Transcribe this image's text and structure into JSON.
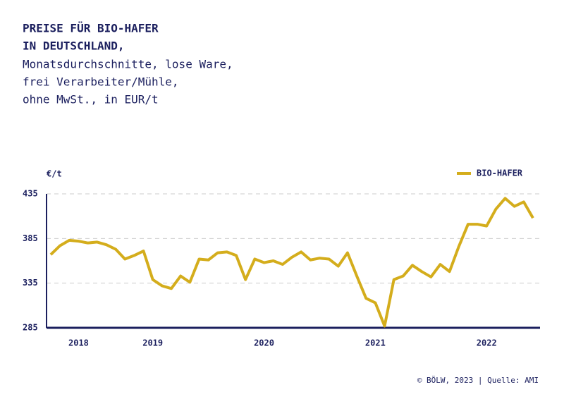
{
  "chart_data": {
    "type": "line",
    "title": [
      "PREISE FÜR BIO-HAFER",
      "IN DEUTSCHLAND,"
    ],
    "subtitle": [
      "Monatsdurchschnitte, lose Ware,",
      "frei Verarbeiter/Mühle,",
      "ohne MwSt., in EUR/t"
    ],
    "y_label": "€/t",
    "source": "© BÖLW, 2023 | Quelle: AMI",
    "categories": [
      null,
      null,
      null,
      "2018",
      null,
      null,
      null,
      null,
      null,
      null,
      null,
      "2019",
      null,
      null,
      null,
      null,
      null,
      null,
      null,
      null,
      null,
      null,
      null,
      "2020",
      null,
      null,
      null,
      null,
      null,
      null,
      null,
      null,
      null,
      null,
      null,
      "2021",
      null,
      null,
      null,
      null,
      null,
      null,
      null,
      null,
      null,
      null,
      null,
      "2022",
      null,
      null,
      null,
      null,
      null
    ],
    "series": [
      {
        "name": "BIO-HAFER",
        "color": "#d4ad1c",
        "values": [
          367,
          377,
          383,
          382,
          380,
          381,
          378,
          373,
          362,
          366,
          371,
          339,
          332,
          329,
          343,
          336,
          362,
          361,
          369,
          370,
          366,
          339,
          362,
          358,
          360,
          356,
          364,
          370,
          361,
          363,
          362,
          354,
          369,
          343,
          318,
          313,
          287,
          339,
          343,
          355,
          348,
          342,
          356,
          348,
          376,
          401,
          401,
          399,
          418,
          430,
          421,
          426,
          408
        ]
      }
    ],
    "ylim": [
      285,
      435
    ],
    "yticks": [
      285,
      335,
      385,
      435
    ],
    "grid": true,
    "legend": "top-right"
  }
}
